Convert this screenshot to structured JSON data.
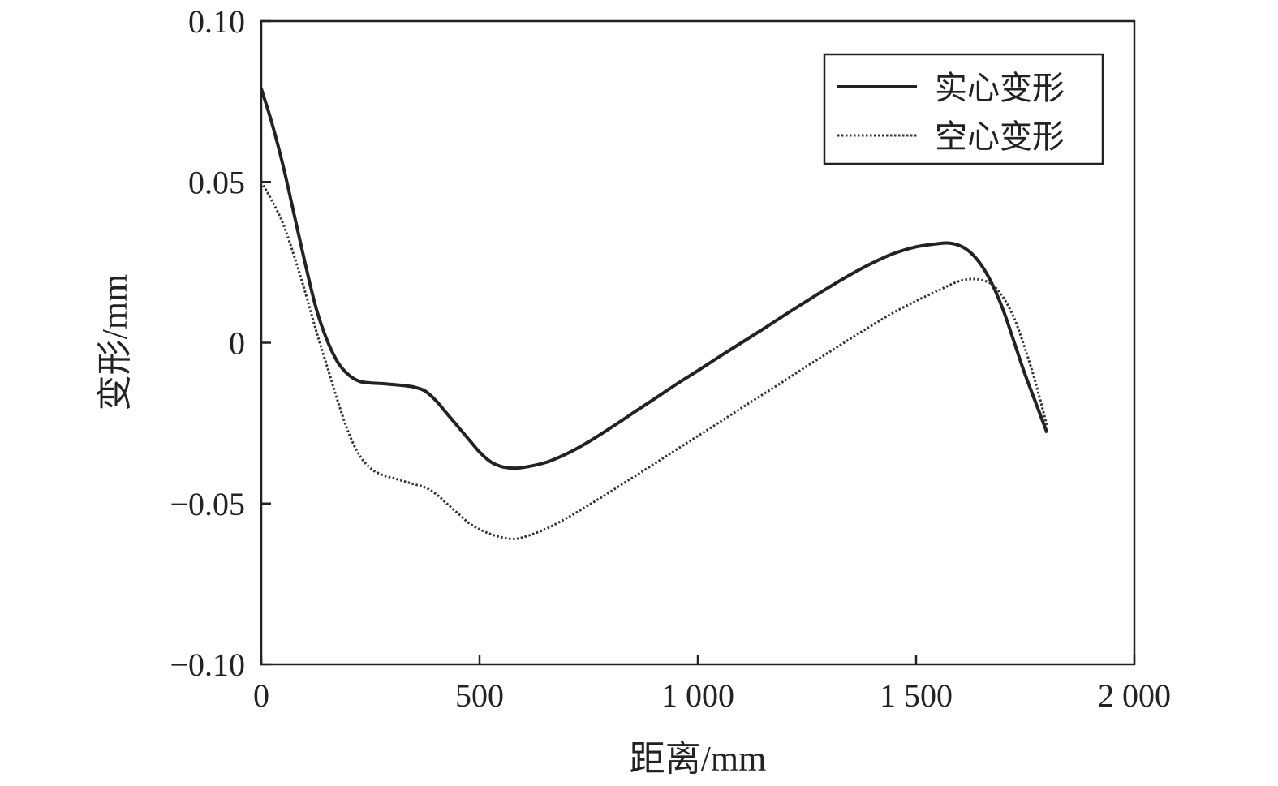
{
  "chart_data": {
    "type": "line",
    "xlabel": "距离/mm",
    "ylabel": "变形/mm",
    "xlim": [
      0,
      2000
    ],
    "ylim": [
      -0.1,
      0.1
    ],
    "x_ticks": [
      0,
      500,
      1000,
      1500,
      2000
    ],
    "x_tick_labels": [
      "0",
      "500",
      "1 000",
      "1 500",
      "2 000"
    ],
    "y_ticks": [
      -0.1,
      -0.05,
      0,
      0.05,
      0.1
    ],
    "y_tick_labels": [
      "−0.10",
      "−0.05",
      "0",
      "0.05",
      "0.10"
    ],
    "grid": false,
    "legend_position": "top-right",
    "series": [
      {
        "name": "实心变形",
        "style": "solid",
        "color": "#222222",
        "x": [
          0,
          25,
          50,
          75,
          100,
          125,
          150,
          175,
          200,
          225,
          250,
          275,
          300,
          325,
          350,
          375,
          400,
          425,
          450,
          475,
          500,
          525,
          550,
          575,
          600,
          650,
          700,
          750,
          800,
          850,
          900,
          950,
          1000,
          1050,
          1100,
          1150,
          1200,
          1250,
          1300,
          1350,
          1400,
          1450,
          1500,
          1550,
          1575,
          1600,
          1625,
          1650,
          1675,
          1700,
          1725,
          1750,
          1775,
          1800
        ],
        "y": [
          0.079,
          0.068,
          0.055,
          0.04,
          0.025,
          0.011,
          0.001,
          -0.006,
          -0.01,
          -0.012,
          -0.0125,
          -0.0127,
          -0.013,
          -0.0133,
          -0.0138,
          -0.015,
          -0.018,
          -0.022,
          -0.026,
          -0.03,
          -0.034,
          -0.037,
          -0.0385,
          -0.039,
          -0.0388,
          -0.0373,
          -0.0345,
          -0.0308,
          -0.0265,
          -0.022,
          -0.0175,
          -0.013,
          -0.0087,
          -0.0043,
          0.0,
          0.0043,
          0.0087,
          0.013,
          0.0172,
          0.0212,
          0.0248,
          0.0278,
          0.0298,
          0.0308,
          0.031,
          0.0302,
          0.028,
          0.024,
          0.018,
          0.01,
          0.0,
          -0.01,
          -0.019,
          -0.028
        ]
      },
      {
        "name": "空心变形",
        "style": "dotted",
        "color": "#333333",
        "x": [
          0,
          25,
          50,
          75,
          100,
          125,
          150,
          175,
          200,
          225,
          250,
          275,
          300,
          325,
          350,
          375,
          400,
          425,
          450,
          475,
          500,
          525,
          550,
          575,
          600,
          650,
          700,
          750,
          800,
          850,
          900,
          950,
          1000,
          1050,
          1100,
          1150,
          1200,
          1250,
          1300,
          1350,
          1400,
          1450,
          1500,
          1550,
          1575,
          1600,
          1625,
          1650,
          1675,
          1700,
          1725,
          1750,
          1775,
          1800
        ],
        "y": [
          0.05,
          0.044,
          0.037,
          0.027,
          0.016,
          0.004,
          -0.007,
          -0.018,
          -0.028,
          -0.035,
          -0.039,
          -0.041,
          -0.042,
          -0.043,
          -0.044,
          -0.045,
          -0.047,
          -0.05,
          -0.053,
          -0.056,
          -0.058,
          -0.0595,
          -0.0605,
          -0.061,
          -0.0605,
          -0.058,
          -0.0545,
          -0.0505,
          -0.0463,
          -0.042,
          -0.0377,
          -0.0333,
          -0.029,
          -0.0247,
          -0.0203,
          -0.016,
          -0.0117,
          -0.0073,
          -0.003,
          0.0013,
          0.0055,
          0.0095,
          0.013,
          0.0162,
          0.0178,
          0.0192,
          0.0198,
          0.0195,
          0.018,
          0.014,
          0.0075,
          -0.002,
          -0.013,
          -0.026
        ]
      }
    ]
  }
}
